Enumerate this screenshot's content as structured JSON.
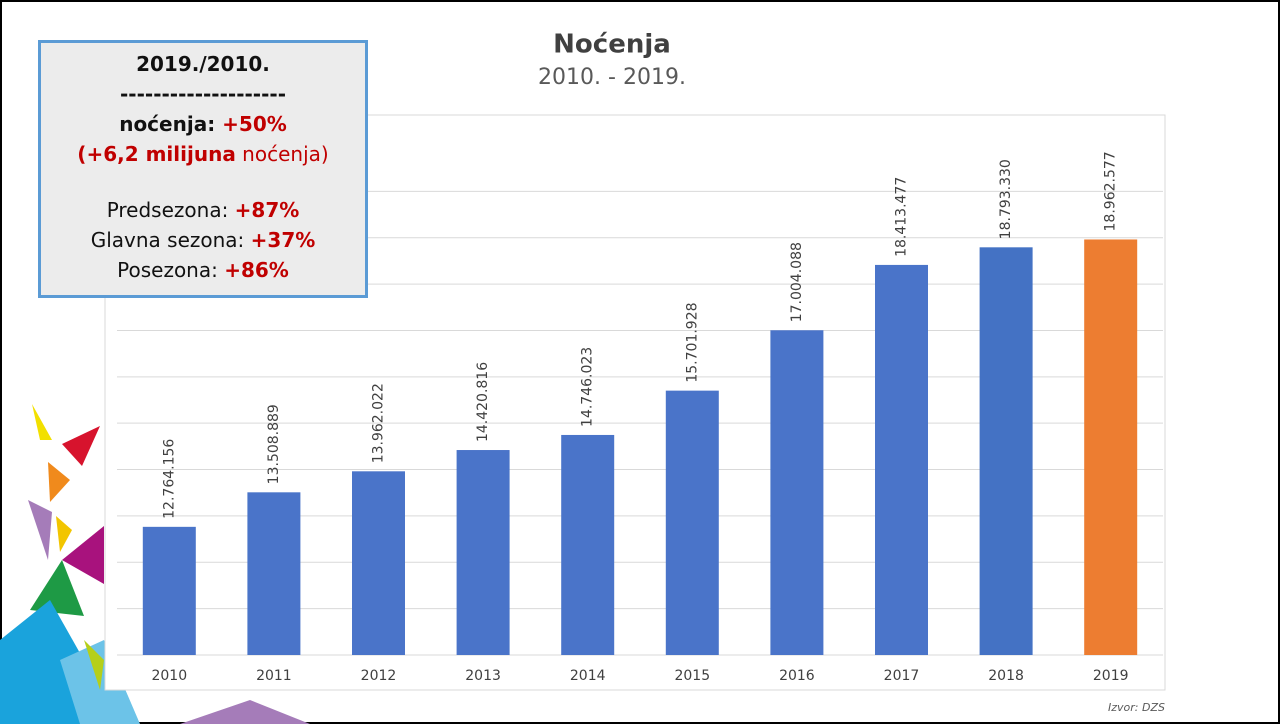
{
  "chart_data": {
    "type": "bar",
    "title": "Noćenja",
    "subtitle": "2010. - 2019.",
    "categories": [
      "2010",
      "2011",
      "2012",
      "2013",
      "2014",
      "2015",
      "2016",
      "2017",
      "2018",
      "2019"
    ],
    "values": [
      12764156,
      13508889,
      13962022,
      14420816,
      14746023,
      15701928,
      17004088,
      18413477,
      18793330,
      18962577
    ],
    "value_labels": [
      "12.764.156",
      "13.508.889",
      "13.962.022",
      "14.420.816",
      "14.746.023",
      "15.701.928",
      "17.004.088",
      "18.413.477",
      "18.793.330",
      "18.962.577"
    ],
    "colors": [
      "#4a74c9",
      "#4a74c9",
      "#4a74c9",
      "#4a74c9",
      "#4a74c9",
      "#4a74c9",
      "#4a74c9",
      "#4a74c9",
      "#4472c4",
      "#ed7d31"
    ],
    "ylim": [
      10000000,
      21000000
    ],
    "yticks": [
      10000000,
      11000000,
      12000000,
      13000000,
      14000000,
      15000000,
      16000000,
      17000000,
      18000000,
      19000000,
      20000000
    ],
    "grid": true,
    "source": "Izvor: DZS",
    "info_box": {
      "heading": "2019./2010.",
      "rule": "--------------------",
      "groups": [
        [
          [
            {
              "text": "noćenja: ",
              "bold": true
            },
            {
              "text": "+50%",
              "bold": true,
              "color": "#c00000"
            }
          ],
          [
            {
              "text": "(+6,2 milijuna",
              "bold": true,
              "color": "#c00000"
            },
            {
              "text": " noćenja)",
              "color": "#c00000"
            }
          ]
        ],
        [
          [
            {
              "text": "Predsezona: "
            },
            {
              "text": "+87%",
              "bold": true,
              "color": "#c00000"
            }
          ],
          [
            {
              "text": "Glavna sezona: "
            },
            {
              "text": "+37%",
              "bold": true,
              "color": "#c00000"
            }
          ],
          [
            {
              "text": "Posezona: "
            },
            {
              "text": "+86%",
              "bold": true,
              "color": "#c00000"
            }
          ]
        ]
      ]
    }
  }
}
